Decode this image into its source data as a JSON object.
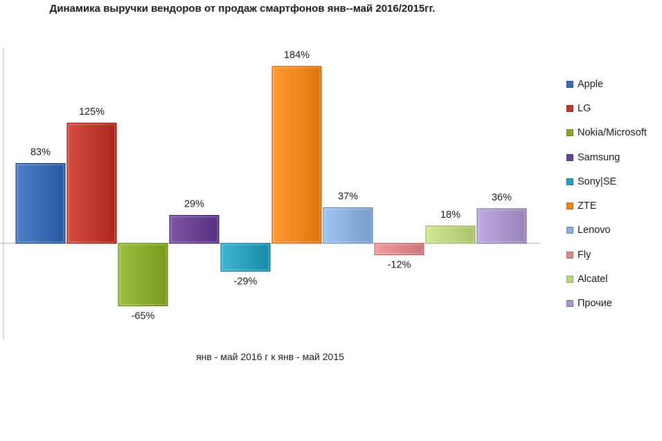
{
  "chart_data": {
    "type": "bar",
    "title": "Динамика выручки вендоров от продаж смартфонов янв--май  2016/2015гг.",
    "xlabel": "янв - май 2016 г к янв - май 2015",
    "ylabel": "",
    "grid": false,
    "legend_position": "right",
    "ylim": [
      -0.65,
      1.84
    ],
    "series": [
      {
        "name": "Apple",
        "value": 0.83,
        "label": "83%",
        "color": "#3a6bb5"
      },
      {
        "name": "LG",
        "value": 1.25,
        "label": "125%",
        "color": "#c0392e"
      },
      {
        "name": "Nokia/Microsoft",
        "value": -0.65,
        "label": "-65%",
        "color": "#8aac2f"
      },
      {
        "name": "Samsung",
        "value": 0.29,
        "label": "29%",
        "color": "#6a4392"
      },
      {
        "name": "Sony|SE",
        "value": -0.29,
        "label": "-29%",
        "color": "#2ba0bd"
      },
      {
        "name": "ZTE",
        "value": 1.84,
        "label": "184%",
        "color": "#f0871f"
      },
      {
        "name": "Lenovo",
        "value": 0.37,
        "label": "37%",
        "color": "#8cb0de"
      },
      {
        "name": "Fly",
        "value": -0.12,
        "label": "-12%",
        "color": "#dc8a88"
      },
      {
        "name": "Alcatel",
        "value": 0.18,
        "label": "18%",
        "color": "#bdd67e"
      },
      {
        "name": "Прочие",
        "value": 0.36,
        "label": "36%",
        "color": "#ab97cc"
      }
    ]
  }
}
